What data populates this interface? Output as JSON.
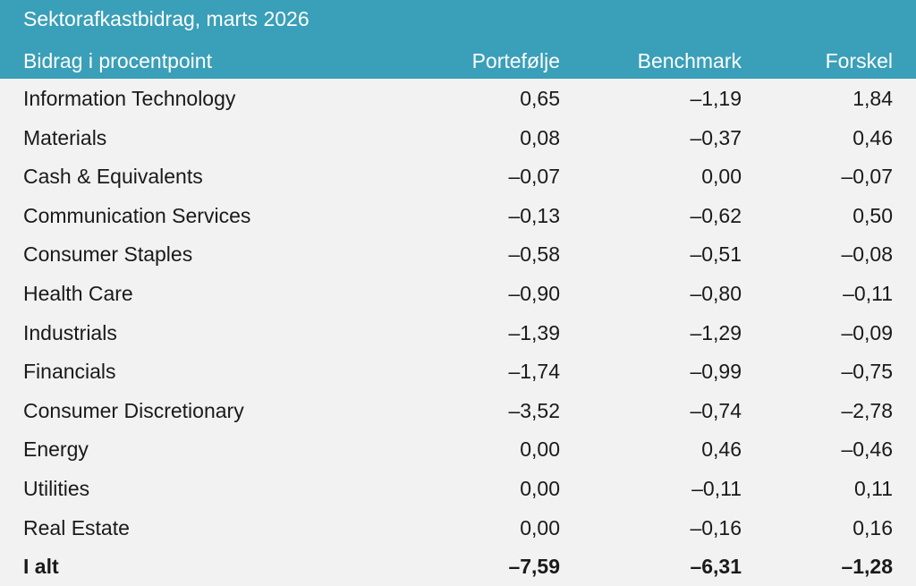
{
  "title": "Sektorafkastbidrag, marts 2026",
  "columns": [
    "Bidrag i procentpoint",
    "Portefølje",
    "Benchmark",
    "Forskel"
  ],
  "rows": [
    [
      "Information Technology",
      "0,65",
      "–1,19",
      "1,84"
    ],
    [
      "Materials",
      "0,08",
      "–0,37",
      "0,46"
    ],
    [
      "Cash & Equivalents",
      "–0,07",
      "0,00",
      "–0,07"
    ],
    [
      "Communication Services",
      "–0,13",
      "–0,62",
      "0,50"
    ],
    [
      "Consumer Staples",
      "–0,58",
      "–0,51",
      "–0,08"
    ],
    [
      "Health Care",
      "–0,90",
      "–0,80",
      "–0,11"
    ],
    [
      "Industrials",
      "–1,39",
      "–1,29",
      "–0,09"
    ],
    [
      "Financials",
      "–1,74",
      "–0,99",
      "–0,75"
    ],
    [
      "Consumer Discretionary",
      "–3,52",
      "–0,74",
      "–2,78"
    ],
    [
      "Energy",
      "0,00",
      "0,46",
      "–0,46"
    ],
    [
      "Utilities",
      "0,00",
      "–0,11",
      "0,11"
    ],
    [
      "Real Estate",
      "0,00",
      "–0,16",
      "0,16"
    ]
  ],
  "total": [
    "I alt",
    "–7,59",
    "–6,31",
    "–1,28"
  ],
  "colors": {
    "header_bg": "#3a9fb8",
    "header_text": "#ffffff",
    "body_bg": "#f2f2f2",
    "text": "#1a1a1a"
  }
}
